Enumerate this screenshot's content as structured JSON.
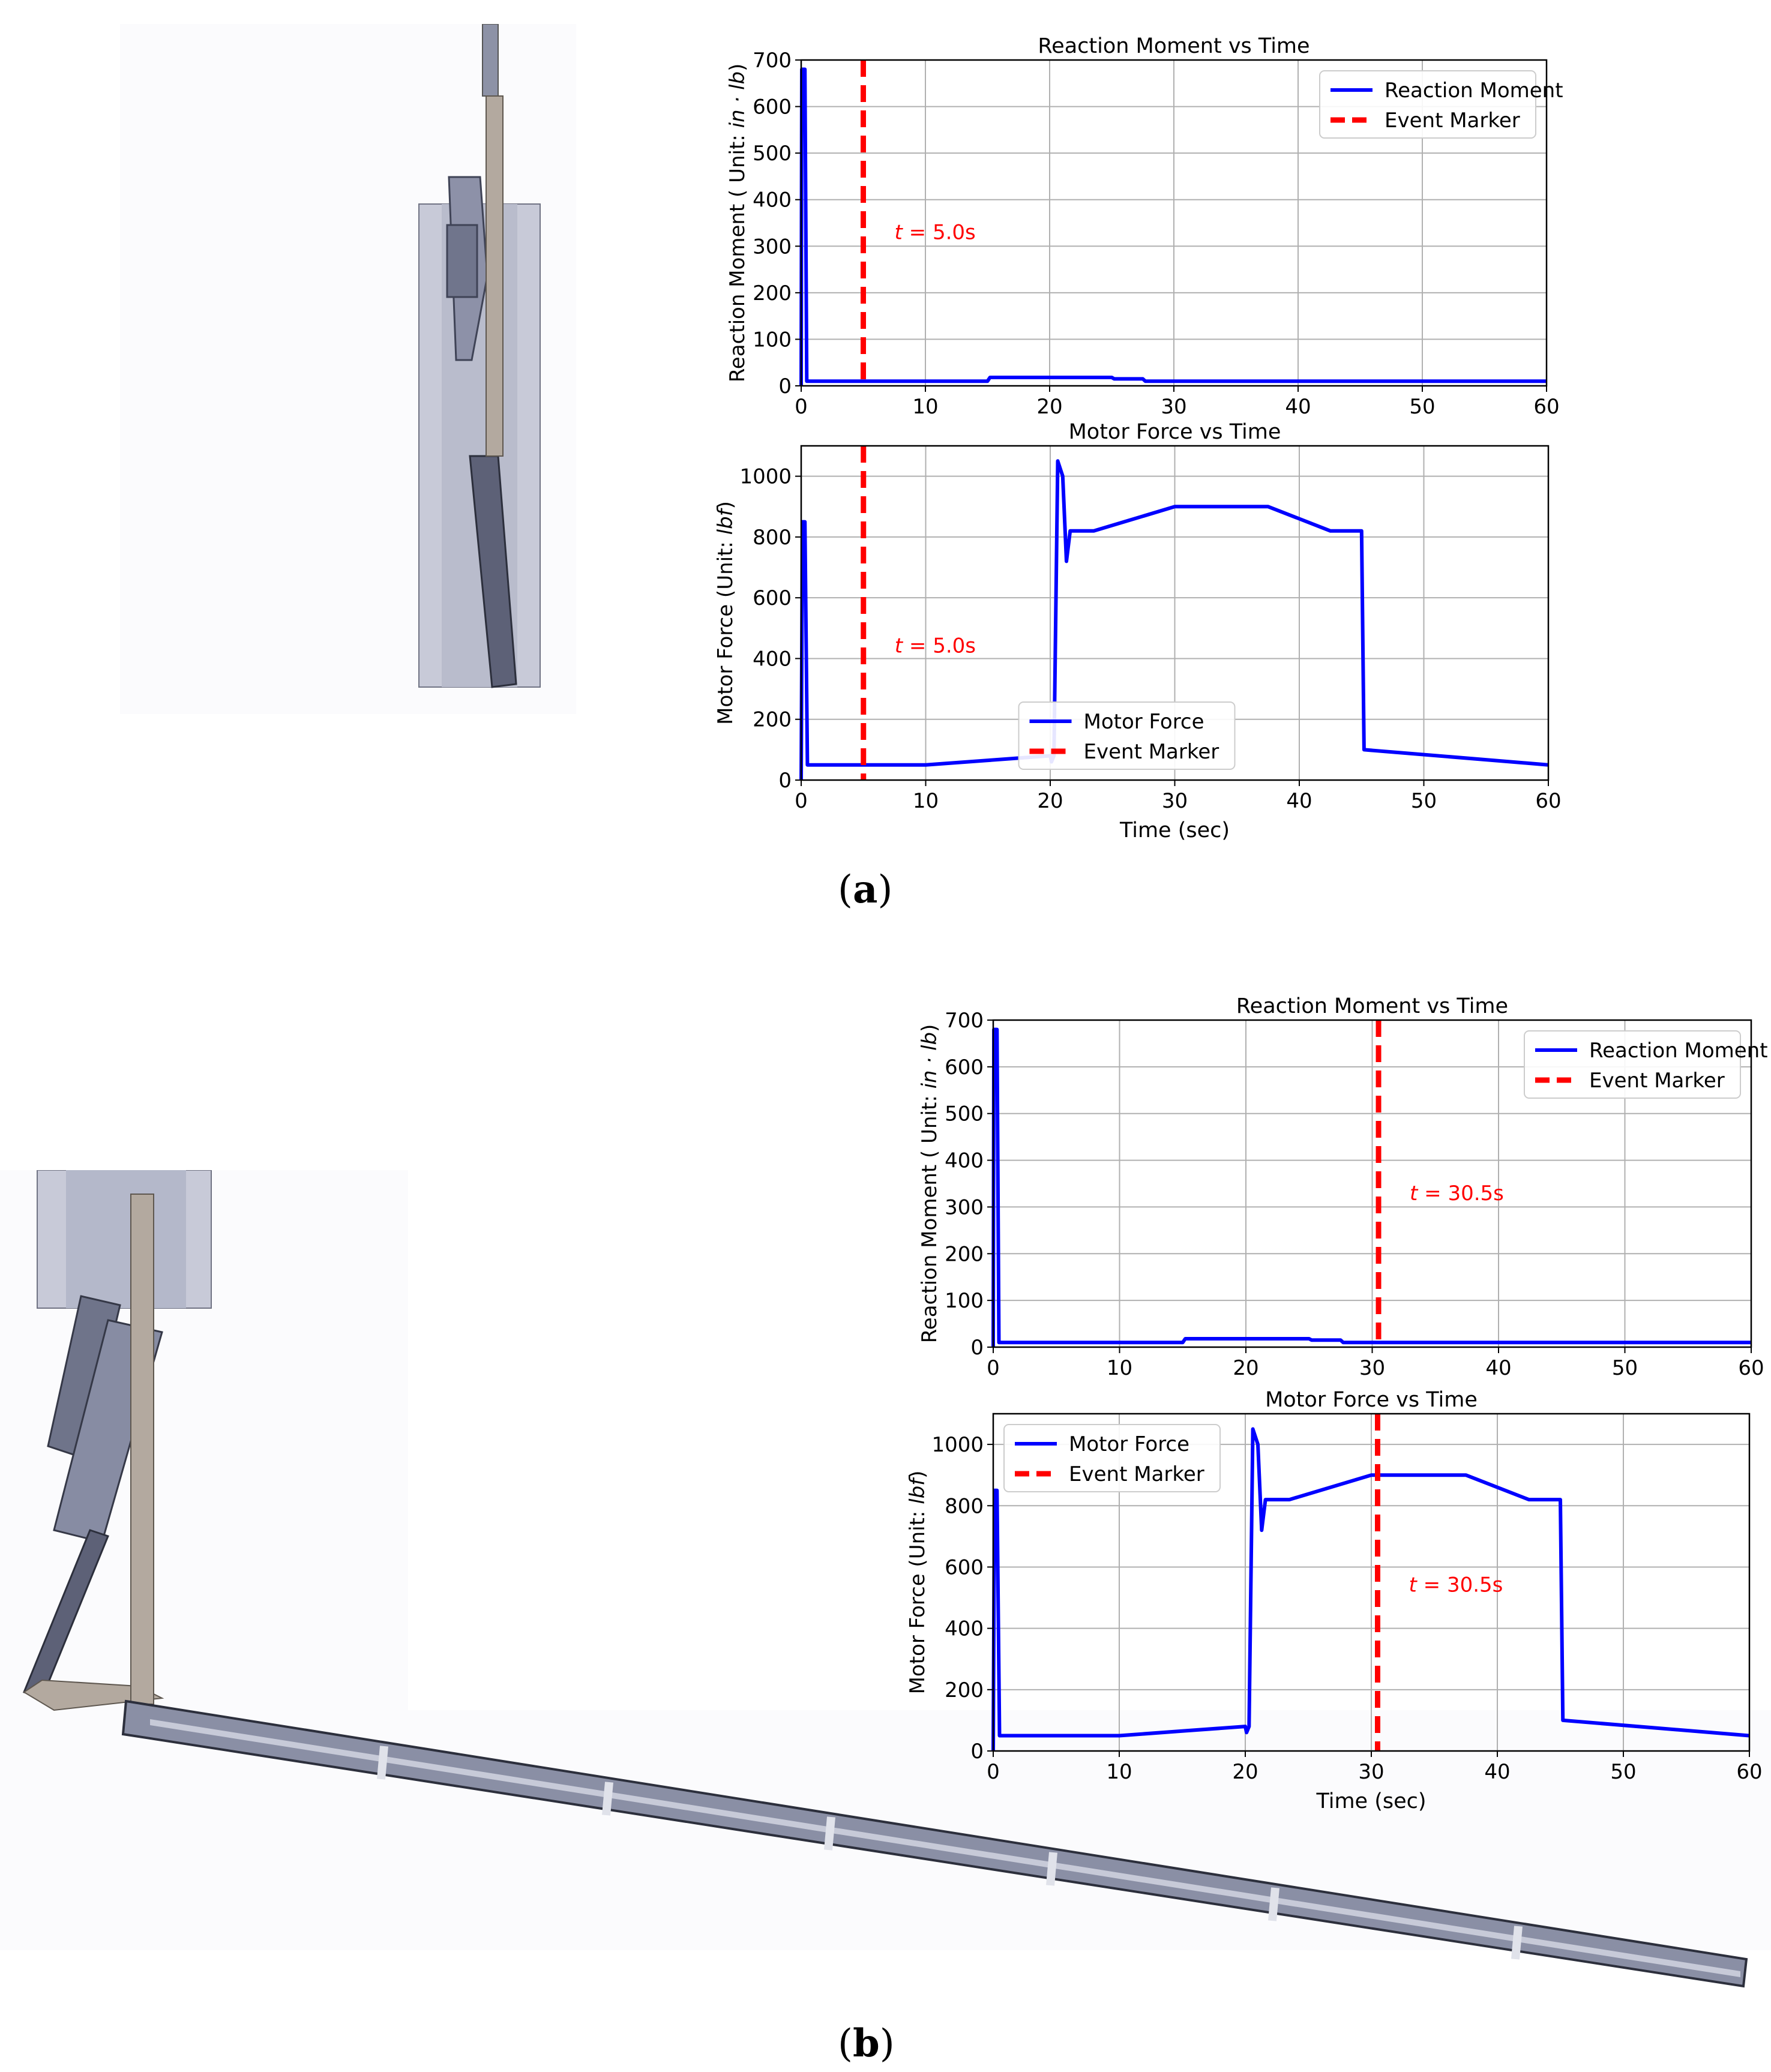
{
  "colors": {
    "series": "#0000ff",
    "marker": "#ff0000",
    "grid": "#b0b0b0",
    "cad_light": "#c8cad8",
    "cad_dark": "#4a4e62",
    "cad_rod": "#b3a99f"
  },
  "panels": [
    {
      "open": "(",
      "letter": "a",
      "close": ")"
    },
    {
      "open": "(",
      "letter": "b",
      "close": ")"
    }
  ],
  "chart_data": [
    {
      "type": "line",
      "panel": "a",
      "title": "Reaction Moment vs Time",
      "xlabel": "",
      "ylabel": {
        "prefix": "Reaction Moment ( Unit: ",
        "unit": "in · lb",
        "suffix": ")"
      },
      "xlim": [
        0,
        60
      ],
      "ylim": [
        0,
        700
      ],
      "xticks": [
        0,
        10,
        20,
        30,
        40,
        50,
        60
      ],
      "yticks": [
        0,
        100,
        200,
        300,
        400,
        500,
        600,
        700
      ],
      "grid": true,
      "legend": "top-right",
      "series": [
        {
          "name": "Reaction Moment",
          "style": "solid",
          "x": [
            0,
            0.05,
            0.3,
            0.45,
            0.5,
            15.0,
            15.2,
            25.0,
            25.2,
            27.5,
            27.7,
            60
          ],
          "y": [
            0,
            680,
            680,
            10,
            10,
            10,
            18,
            18,
            15,
            15,
            10,
            10
          ]
        }
      ],
      "marker": {
        "name": "Event Marker",
        "x": 5.0,
        "label": "t = 5.0s",
        "label_y": 315
      }
    },
    {
      "type": "line",
      "panel": "a",
      "title": "Motor Force vs Time",
      "xlabel": "Time (sec)",
      "ylabel": {
        "prefix": "Motor Force (Unit: ",
        "unit": "lbf",
        "suffix": ")"
      },
      "xlim": [
        0,
        60
      ],
      "ylim": [
        0,
        1100
      ],
      "xticks": [
        0,
        10,
        20,
        30,
        40,
        50,
        60
      ],
      "yticks": [
        0,
        200,
        400,
        600,
        800,
        1000
      ],
      "grid": true,
      "legend": "bottom-center",
      "series": [
        {
          "name": "Motor Force",
          "style": "solid",
          "x": [
            0,
            0.1,
            0.3,
            0.5,
            10,
            15,
            20,
            20.1,
            20.3,
            20.6,
            21.0,
            21.3,
            21.6,
            23.5,
            30,
            37.5,
            42.5,
            45,
            45.2,
            60
          ],
          "y": [
            0,
            850,
            850,
            50,
            50,
            65,
            80,
            60,
            80,
            1050,
            1000,
            720,
            820,
            820,
            900,
            900,
            820,
            820,
            100,
            50
          ]
        }
      ],
      "marker": {
        "name": "Event Marker",
        "x": 5.0,
        "label": "t = 5.0s",
        "label_y": 420
      }
    },
    {
      "type": "line",
      "panel": "b",
      "title": "Reaction Moment vs Time",
      "xlabel": "",
      "ylabel": {
        "prefix": "Reaction Moment ( Unit: ",
        "unit": "in · lb",
        "suffix": ")"
      },
      "xlim": [
        0,
        60
      ],
      "ylim": [
        0,
        700
      ],
      "xticks": [
        0,
        10,
        20,
        30,
        40,
        50,
        60
      ],
      "yticks": [
        0,
        100,
        200,
        300,
        400,
        500,
        600,
        700
      ],
      "grid": true,
      "legend": "top-right",
      "series": [
        {
          "name": "Reaction Moment",
          "style": "solid",
          "x": [
            0,
            0.05,
            0.3,
            0.45,
            0.5,
            15.0,
            15.2,
            25.0,
            25.2,
            27.5,
            27.7,
            60
          ],
          "y": [
            0,
            680,
            680,
            10,
            10,
            10,
            18,
            18,
            15,
            15,
            10,
            10
          ]
        }
      ],
      "marker": {
        "name": "Event Marker",
        "x": 30.5,
        "label": "t = 30.5s",
        "label_y": 315
      }
    },
    {
      "type": "line",
      "panel": "b",
      "title": "Motor Force vs Time",
      "xlabel": "Time (sec)",
      "ylabel": {
        "prefix": "Motor Force (Unit: ",
        "unit": "lbf",
        "suffix": ")"
      },
      "xlim": [
        0,
        60
      ],
      "ylim": [
        0,
        1100
      ],
      "xticks": [
        0,
        10,
        20,
        30,
        40,
        50,
        60
      ],
      "yticks": [
        0,
        200,
        400,
        600,
        800,
        1000
      ],
      "grid": true,
      "legend": "top-left",
      "series": [
        {
          "name": "Motor Force",
          "style": "solid",
          "x": [
            0,
            0.1,
            0.3,
            0.5,
            10,
            15,
            20,
            20.1,
            20.3,
            20.6,
            21.0,
            21.3,
            21.6,
            23.5,
            30,
            37.5,
            42.5,
            45,
            45.2,
            60
          ],
          "y": [
            0,
            850,
            850,
            50,
            50,
            65,
            80,
            60,
            80,
            1050,
            1000,
            720,
            820,
            820,
            900,
            900,
            820,
            820,
            100,
            50
          ]
        }
      ],
      "marker": {
        "name": "Event Marker",
        "x": 30.5,
        "label": "t = 30.5s",
        "label_y": 520
      }
    }
  ]
}
